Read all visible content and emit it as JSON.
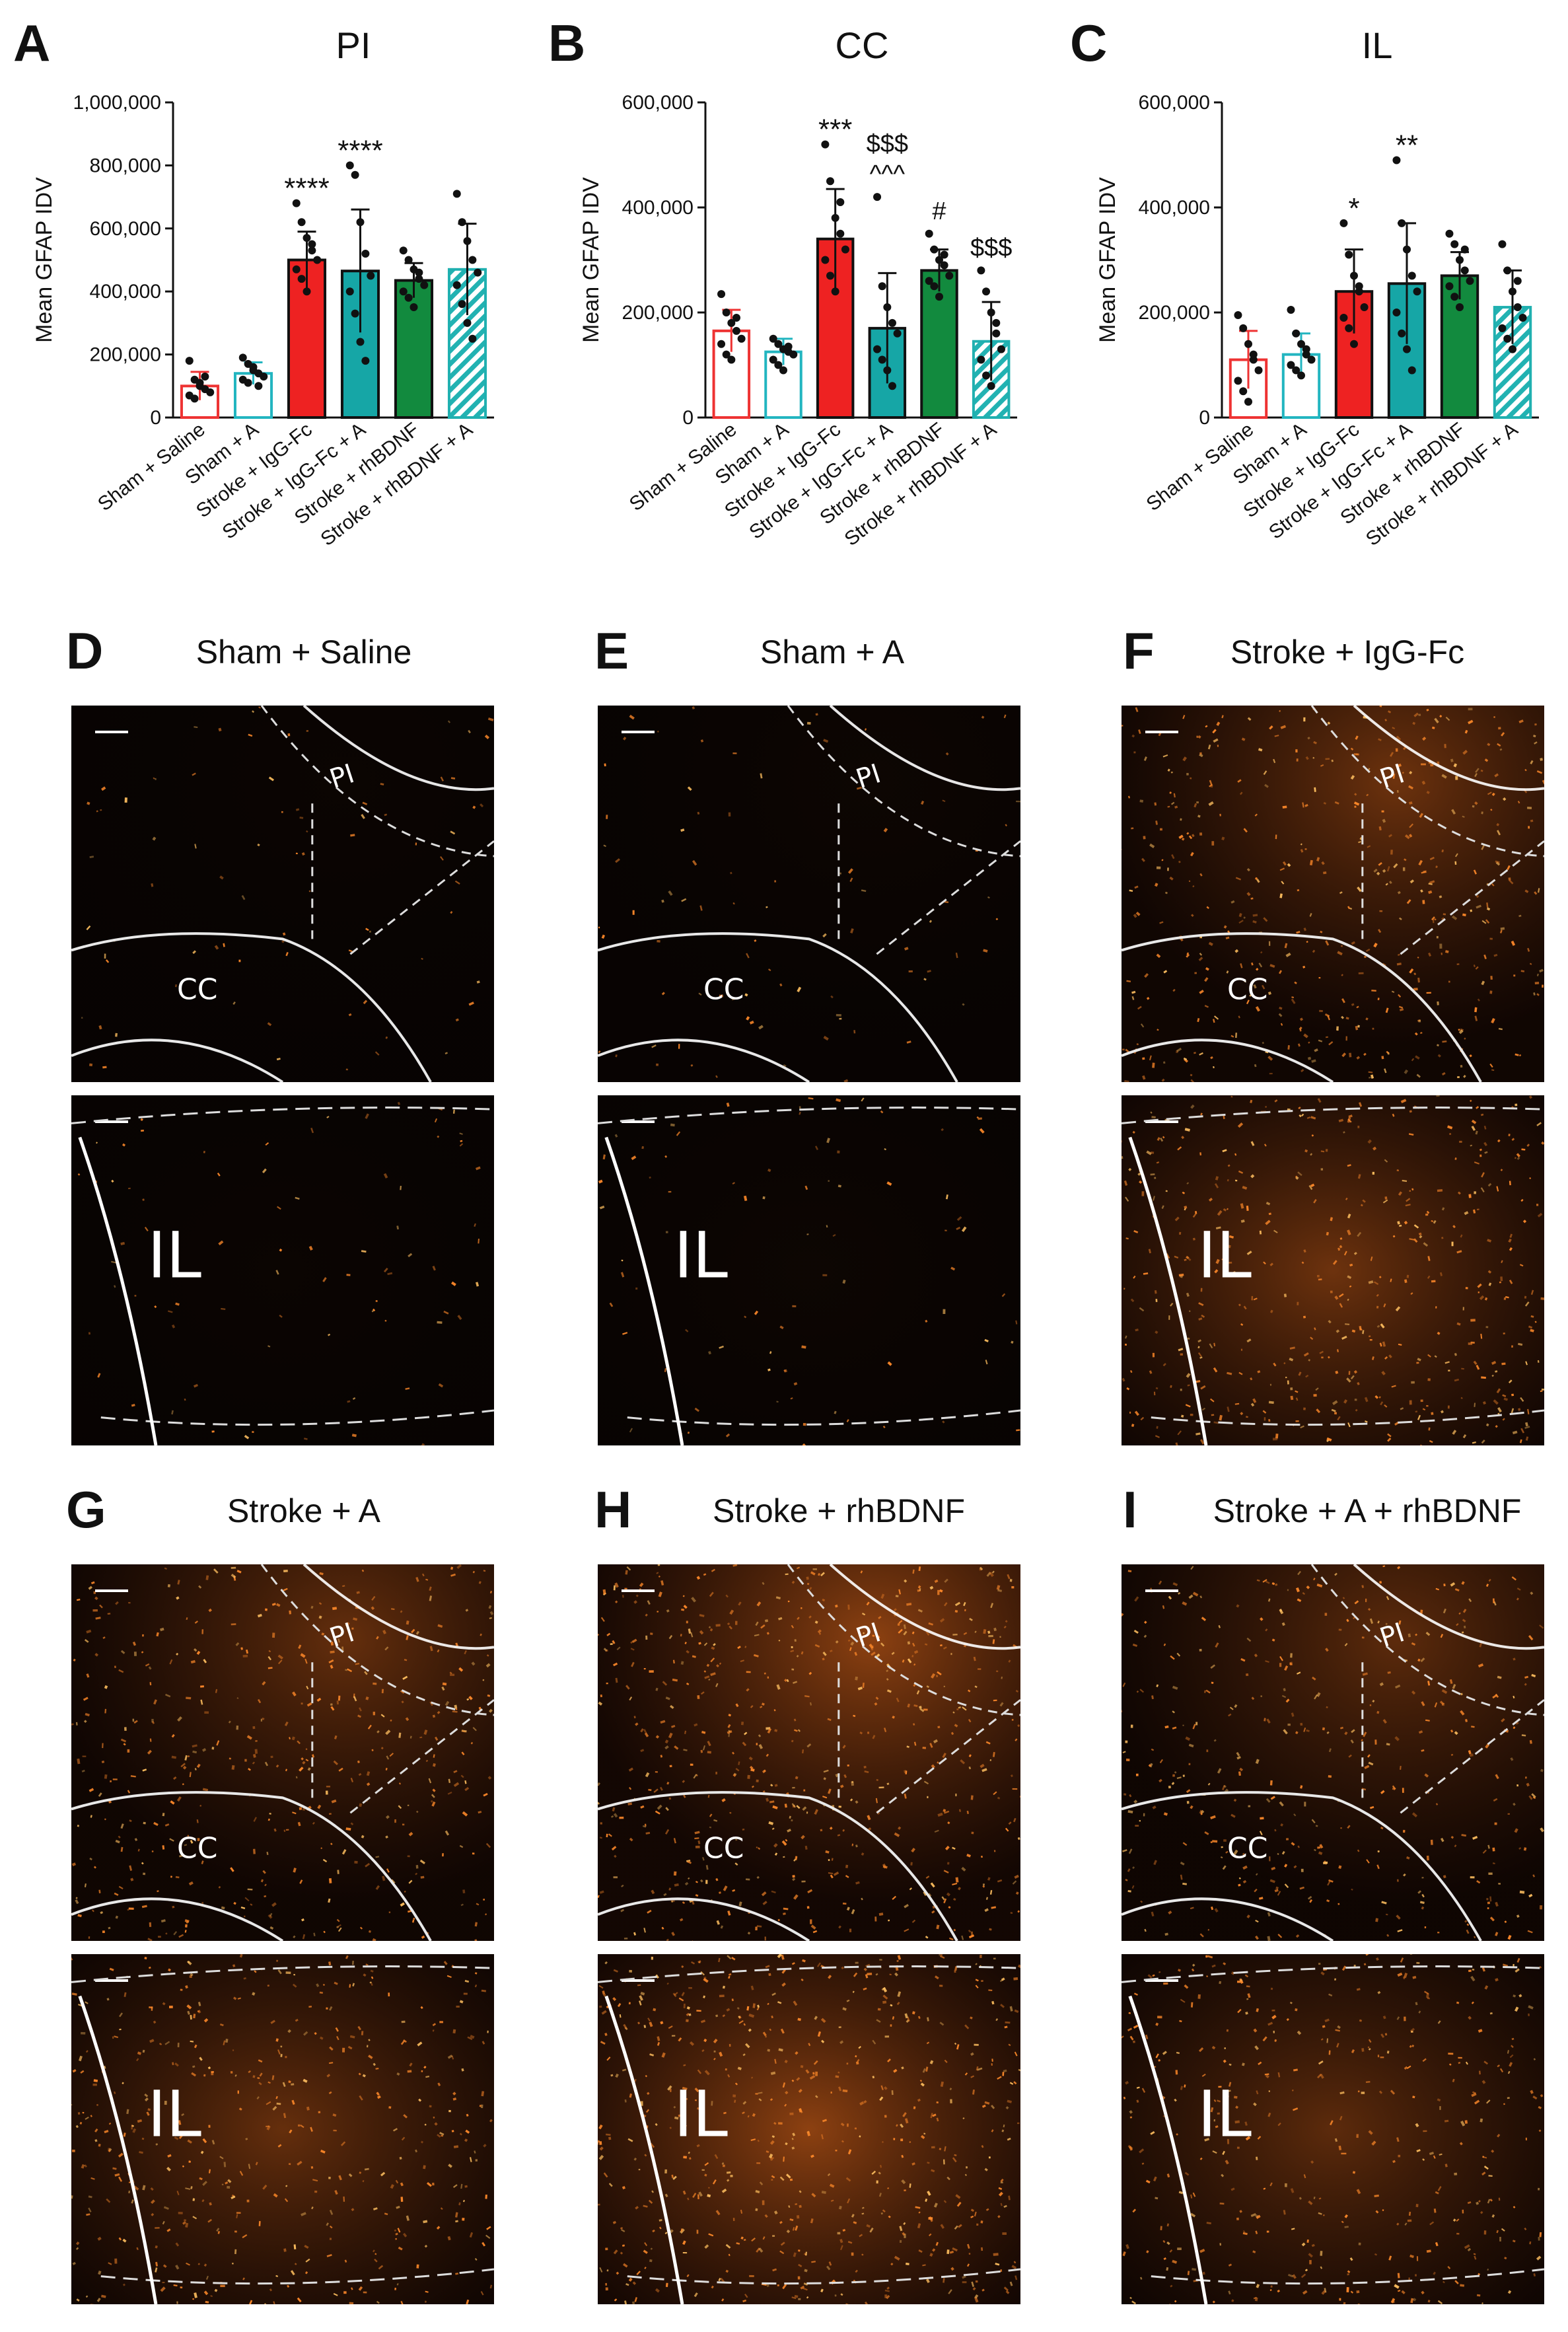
{
  "chart_data": [
    {
      "panel": "A",
      "type": "bar",
      "title": "PI",
      "ylabel": "Mean GFAP IDV",
      "ylim": [
        0,
        1000000
      ],
      "yticks": [
        0,
        200000,
        400000,
        600000,
        800000,
        1000000
      ],
      "ytick_labels": [
        "0",
        "200,000",
        "400,000",
        "600,000",
        "800,000",
        "1,000,000"
      ],
      "categories": [
        "Sham + Saline",
        "Sham + A",
        "Stroke + IgG-Fc",
        "Stroke + IgG-Fc + A",
        "Stroke + rhBDNF",
        "Stroke + rhBDNF + A"
      ],
      "values": [
        100000,
        140000,
        500000,
        465000,
        435000,
        470000
      ],
      "errors": [
        45000,
        35000,
        90000,
        195000,
        55000,
        145000
      ],
      "annotations": [
        "",
        "",
        "****",
        "****",
        "",
        ""
      ],
      "points": [
        [
          180000,
          120000,
          100000,
          90000,
          80000,
          70000,
          60000,
          110000,
          130000
        ],
        [
          190000,
          170000,
          150000,
          140000,
          130000,
          120000,
          110000,
          160000,
          100000
        ],
        [
          680000,
          620000,
          570000,
          530000,
          500000,
          470000,
          440000,
          400000,
          550000
        ],
        [
          800000,
          770000,
          620000,
          520000,
          450000,
          400000,
          330000,
          240000,
          180000
        ],
        [
          530000,
          500000,
          470000,
          440000,
          420000,
          400000,
          380000,
          350000,
          460000
        ],
        [
          710000,
          620000,
          560000,
          500000,
          460000,
          420000,
          360000,
          300000,
          250000
        ]
      ]
    },
    {
      "panel": "B",
      "type": "bar",
      "title": "CC",
      "ylabel": "Mean GFAP IDV",
      "ylim": [
        0,
        600000
      ],
      "yticks": [
        0,
        200000,
        400000,
        600000
      ],
      "ytick_labels": [
        "0",
        "200,000",
        "400,000",
        "600,000"
      ],
      "categories": [
        "Sham + Saline",
        "Sham + A",
        "Stroke + IgG-Fc",
        "Stroke + IgG-Fc + A",
        "Stroke + rhBDNF",
        "Stroke + rhBDNF + A"
      ],
      "values": [
        165000,
        125000,
        340000,
        170000,
        280000,
        145000
      ],
      "errors": [
        40000,
        25000,
        95000,
        105000,
        40000,
        75000
      ],
      "annotations": [
        "",
        "",
        "***",
        "$$$\n^^^",
        "#",
        "$$$"
      ],
      "points": [
        [
          235000,
          200000,
          180000,
          165000,
          150000,
          140000,
          120000,
          110000,
          190000
        ],
        [
          150000,
          140000,
          130000,
          125000,
          120000,
          110000,
          100000,
          90000,
          135000
        ],
        [
          520000,
          450000,
          380000,
          350000,
          320000,
          300000,
          270000,
          240000,
          410000
        ],
        [
          420000,
          250000,
          210000,
          180000,
          160000,
          130000,
          110000,
          90000,
          60000
        ],
        [
          350000,
          320000,
          300000,
          290000,
          270000,
          260000,
          250000,
          230000,
          310000
        ],
        [
          280000,
          240000,
          200000,
          160000,
          130000,
          110000,
          80000,
          60000,
          180000
        ]
      ]
    },
    {
      "panel": "C",
      "type": "bar",
      "title": "IL",
      "ylabel": "Mean GFAP IDV",
      "ylim": [
        0,
        600000
      ],
      "yticks": [
        0,
        200000,
        400000,
        600000
      ],
      "ytick_labels": [
        "0",
        "200,000",
        "400,000",
        "600,000"
      ],
      "categories": [
        "Sham + Saline",
        "Sham + A",
        "Stroke + IgG-Fc",
        "Stroke + IgG-Fc + A",
        "Stroke + rhBDNF",
        "Stroke + rhBDNF + A"
      ],
      "values": [
        110000,
        120000,
        240000,
        255000,
        270000,
        210000
      ],
      "errors": [
        55000,
        40000,
        80000,
        115000,
        45000,
        70000
      ],
      "annotations": [
        "",
        "",
        "*",
        "**",
        "",
        ""
      ],
      "points": [
        [
          195000,
          170000,
          140000,
          110000,
          90000,
          70000,
          50000,
          30000,
          120000
        ],
        [
          205000,
          160000,
          140000,
          120000,
          110000,
          100000,
          90000,
          80000,
          130000
        ],
        [
          370000,
          310000,
          270000,
          240000,
          210000,
          190000,
          170000,
          140000,
          250000
        ],
        [
          490000,
          370000,
          320000,
          270000,
          240000,
          200000,
          160000,
          130000,
          90000
        ],
        [
          350000,
          330000,
          300000,
          280000,
          260000,
          250000,
          230000,
          210000,
          320000
        ],
        [
          330000,
          280000,
          240000,
          210000,
          190000,
          170000,
          150000,
          130000,
          260000
        ]
      ]
    }
  ],
  "series_style": {
    "colors": [
      "#ffffff",
      "#ffffff",
      "#ee2222",
      "#16a6a6",
      "#128a3e",
      "#ffffff"
    ],
    "edges": [
      "#ee3333",
      "#22b5c0",
      "#111111",
      "#111111",
      "#111111",
      "#20b0b0"
    ],
    "hatch": [
      false,
      false,
      false,
      false,
      false,
      true
    ]
  },
  "panels": {
    "A": "A",
    "B": "B",
    "C": "C",
    "D": "D",
    "E": "E",
    "F": "F",
    "G": "G",
    "H": "H",
    "I": "I"
  },
  "micrographs": [
    {
      "panel": "D",
      "title": "Sham + Saline",
      "pi": "PI",
      "cc": "CC",
      "il": "IL",
      "intensity": 0.03
    },
    {
      "panel": "E",
      "title": "Sham + A",
      "pi": "PI",
      "cc": "CC",
      "il": "IL",
      "intensity": 0.04
    },
    {
      "panel": "F",
      "title": "Stroke + IgG-Fc",
      "pi": "PI",
      "cc": "CC",
      "il": "IL",
      "intensity": 0.65
    },
    {
      "panel": "G",
      "title": "Stroke + A",
      "pi": "PI",
      "cc": "CC",
      "il": "IL",
      "intensity": 0.6
    },
    {
      "panel": "H",
      "title": "Stroke + rhBDNF",
      "pi": "PI",
      "cc": "CC",
      "il": "IL",
      "intensity": 0.85
    },
    {
      "panel": "I",
      "title": "Stroke + A + rhBDNF",
      "pi": "PI",
      "cc": "CC",
      "il": "IL",
      "intensity": 0.55
    }
  ]
}
